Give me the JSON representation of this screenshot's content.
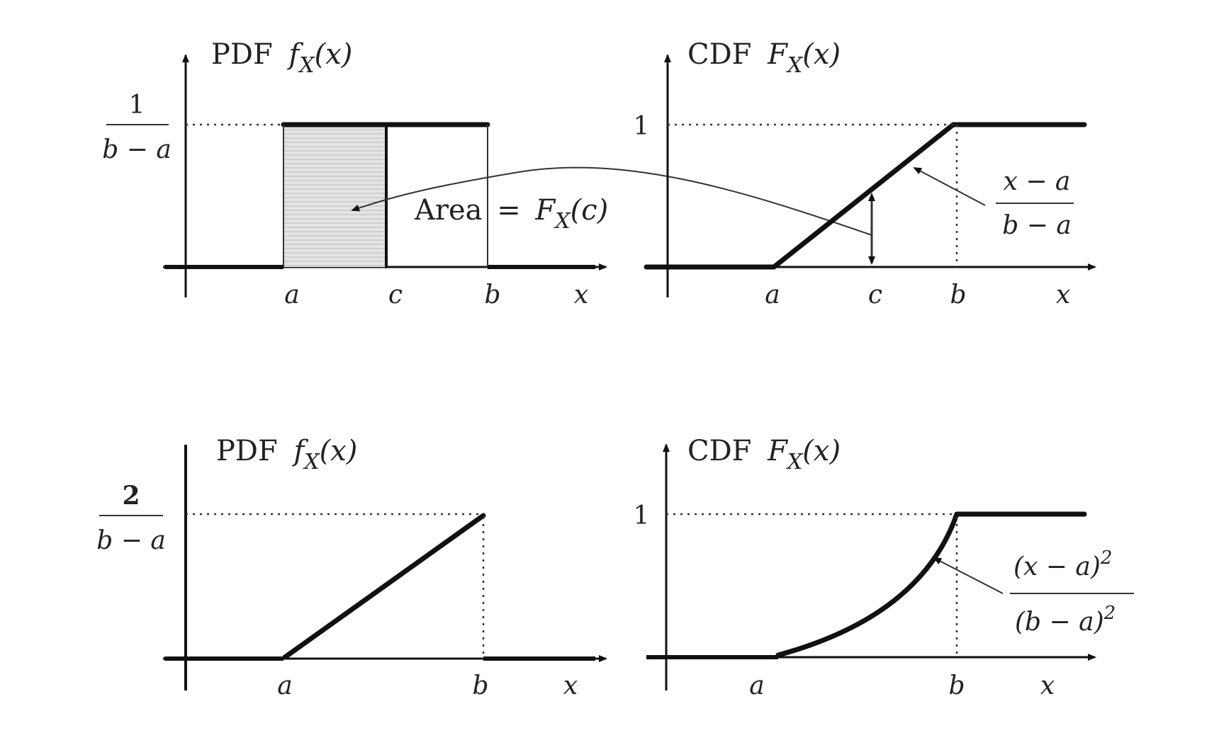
{
  "panels": {
    "top_pdf": {
      "title_prefix": "PDF",
      "title_func": "f",
      "title_sub": "X",
      "title_arg": "(x)",
      "y_num": "1",
      "y_den": "b − a",
      "area_label_word": "Area",
      "area_label_eq": "=",
      "area_label_func": "F",
      "area_label_sub": "X",
      "area_label_arg": "(c)",
      "x_ticks": [
        "a",
        "c",
        "b",
        "x"
      ]
    },
    "top_cdf": {
      "title_prefix": "CDF",
      "title_func": "F",
      "title_sub": "X",
      "title_arg": "(x)",
      "y_tick": "1",
      "formula_num": "x − a",
      "formula_den": "b − a",
      "x_ticks": [
        "a",
        "c",
        "b",
        "x"
      ]
    },
    "bottom_pdf": {
      "title_prefix": "PDF",
      "title_func": "f",
      "title_sub": "X",
      "title_arg": "(x)",
      "y_num": "2",
      "y_den": "b − a",
      "x_ticks": [
        "a",
        "b",
        "x"
      ]
    },
    "bottom_cdf": {
      "title_prefix": "CDF",
      "title_func": "F",
      "title_sub": "X",
      "title_arg": "(x)",
      "y_tick": "1",
      "formula_num": "(x − a)",
      "formula_num_exp": "2",
      "formula_den": "(b − a)",
      "formula_den_exp": "2",
      "x_ticks": [
        "a",
        "b",
        "x"
      ]
    }
  }
}
